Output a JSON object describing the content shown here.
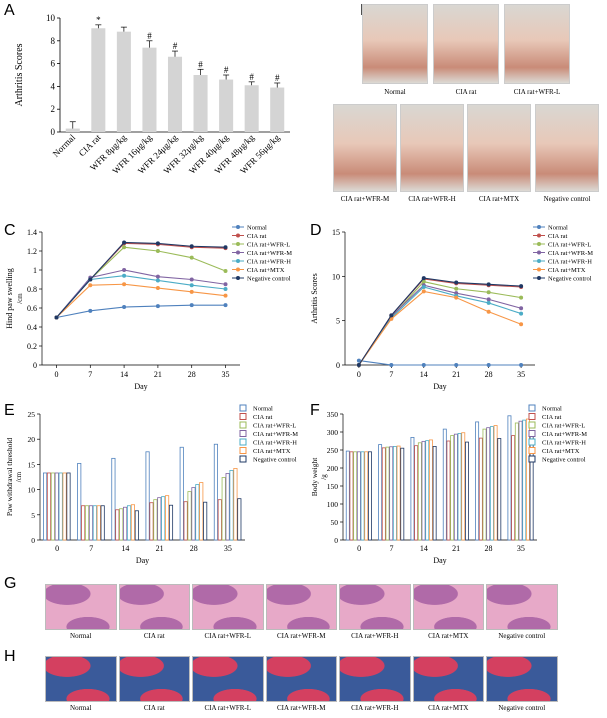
{
  "panels": {
    "A": "A",
    "B": "B",
    "C": "C",
    "D": "D",
    "E": "E",
    "F": "F",
    "G": "G",
    "H": "H"
  },
  "photo_labels": {
    "row1": [
      "Normal",
      "CIA rat",
      "CIA rat+WFR-L"
    ],
    "row2": [
      "CIA rat+WFR-M",
      "CIA rat+WFR-H",
      "CIA rat+MTX",
      "Negative control"
    ]
  },
  "histology_labels": [
    "Normal",
    "CIA rat",
    "CIA rat+WFR-L",
    "CIA rat+WFR-M",
    "CIA rat+WFR-H",
    "CIA rat+MTX",
    "Negative control"
  ],
  "colors": {
    "normal": "#4f81bd",
    "cia": "#c0504d",
    "wfrl": "#9bbb59",
    "wfrm": "#8064a2",
    "wfrh": "#4bacc6",
    "mtx": "#f79646",
    "neg": "#1f3864",
    "bar_gray": "#d4d4d4",
    "he_pink": "#e7a9c8",
    "he_purple": "#b06aa8",
    "stain_blue": "#3a5a9a",
    "stain_red": "#d44060"
  },
  "chart_data": [
    {
      "id": "A",
      "type": "bar",
      "categories": [
        "Normal",
        "CIA rat",
        "WFR 8μg/kg",
        "WFR 16μg/kg",
        "WFR 24μg/kg",
        "WFR 32μg/kg",
        "WFR 40μg/kg",
        "WFR 48μg/kg",
        "WFR 56μg/kg"
      ],
      "values": [
        0.3,
        9.1,
        8.8,
        7.4,
        6.6,
        5.0,
        4.6,
        4.1,
        3.9
      ],
      "errors": [
        0.6,
        0.3,
        0.4,
        0.6,
        0.5,
        0.5,
        0.4,
        0.3,
        0.4
      ],
      "annotations": [
        "",
        "*",
        "",
        "#",
        "#",
        "#",
        "#",
        "#",
        "#"
      ],
      "ylabel": "Arthritis Scores",
      "ylim": [
        0,
        10
      ],
      "yticks": [
        0,
        2,
        4,
        6,
        8,
        10
      ]
    },
    {
      "id": "C",
      "type": "line",
      "x": [
        0,
        7,
        14,
        21,
        28,
        35
      ],
      "xlabel": "Day",
      "ylabel": "Hind paw swelling",
      "yunit": "/cm",
      "ylim": [
        0,
        1.4
      ],
      "yticks": [
        0,
        0.2,
        0.4,
        0.6,
        0.8,
        1.0,
        1.2,
        1.4
      ],
      "legend": "top-right",
      "series": [
        {
          "name": "Normal",
          "color": "#4f81bd",
          "values": [
            0.5,
            0.57,
            0.61,
            0.62,
            0.63,
            0.63
          ]
        },
        {
          "name": "CIA rat",
          "color": "#c0504d",
          "values": [
            0.5,
            0.9,
            1.28,
            1.27,
            1.24,
            1.23
          ]
        },
        {
          "name": "CIA rat+WFR-L",
          "color": "#9bbb59",
          "values": [
            0.5,
            0.9,
            1.24,
            1.2,
            1.13,
            0.99
          ]
        },
        {
          "name": "CIA rat+WFR-M",
          "color": "#8064a2",
          "values": [
            0.5,
            0.92,
            1.0,
            0.93,
            0.9,
            0.85
          ]
        },
        {
          "name": "CIA rat+WFR-H",
          "color": "#4bacc6",
          "values": [
            0.5,
            0.9,
            0.94,
            0.89,
            0.84,
            0.8
          ]
        },
        {
          "name": "CIA rat+MTX",
          "color": "#f79646",
          "values": [
            0.5,
            0.84,
            0.85,
            0.81,
            0.77,
            0.73
          ]
        },
        {
          "name": "Negative control",
          "color": "#1f3864",
          "values": [
            0.5,
            0.9,
            1.29,
            1.28,
            1.25,
            1.24
          ]
        }
      ]
    },
    {
      "id": "D",
      "type": "line",
      "x": [
        0,
        7,
        14,
        21,
        28,
        35
      ],
      "xlabel": "Day",
      "ylabel": "Arthritis Scores",
      "ylim": [
        0,
        15
      ],
      "yticks": [
        0,
        5,
        10,
        15
      ],
      "legend": "top-right",
      "series": [
        {
          "name": "Normal",
          "color": "#4f81bd",
          "values": [
            0.5,
            0,
            0,
            0,
            0,
            0
          ]
        },
        {
          "name": "CIA rat",
          "color": "#c0504d",
          "values": [
            0,
            5.6,
            9.7,
            9.2,
            9.0,
            8.8
          ]
        },
        {
          "name": "CIA rat+WFR-L",
          "color": "#9bbb59",
          "values": [
            0,
            5.4,
            9.4,
            8.6,
            8.2,
            7.6
          ]
        },
        {
          "name": "CIA rat+WFR-M",
          "color": "#8064a2",
          "values": [
            0,
            5.5,
            9.0,
            8.1,
            7.4,
            6.4
          ]
        },
        {
          "name": "CIA rat+WFR-H",
          "color": "#4bacc6",
          "values": [
            0,
            5.3,
            8.8,
            7.8,
            7.0,
            5.8
          ]
        },
        {
          "name": "CIA rat+MTX",
          "color": "#f79646",
          "values": [
            0,
            5.2,
            8.3,
            7.6,
            6.0,
            4.6
          ]
        },
        {
          "name": "Negative control",
          "color": "#1f3864",
          "values": [
            0,
            5.6,
            9.8,
            9.3,
            9.1,
            8.9
          ]
        }
      ]
    },
    {
      "id": "E",
      "type": "bar",
      "categories": [
        "0",
        "7",
        "14",
        "21",
        "28",
        "35"
      ],
      "xlabel": "Day",
      "ylabel": "Paw withdrawal threshold",
      "yunit": "/cm",
      "ylim": [
        0,
        25
      ],
      "yticks": [
        0,
        5,
        10,
        15,
        20,
        25
      ],
      "legend": "top-right",
      "series": [
        {
          "name": "Normal",
          "color": "#4f81bd",
          "values": [
            13.3,
            15.2,
            16.2,
            17.5,
            18.4,
            19.0
          ]
        },
        {
          "name": "CIA rat",
          "color": "#c0504d",
          "values": [
            13.3,
            6.8,
            6.0,
            7.4,
            7.6,
            8.0
          ]
        },
        {
          "name": "CIA rat+WFR-L",
          "color": "#9bbb59",
          "values": [
            13.3,
            6.8,
            6.2,
            8.0,
            9.6,
            12.4
          ]
        },
        {
          "name": "CIA rat+WFR-M",
          "color": "#8064a2",
          "values": [
            13.3,
            6.8,
            6.5,
            8.4,
            10.4,
            13.2
          ]
        },
        {
          "name": "CIA rat+WFR-H",
          "color": "#4bacc6",
          "values": [
            13.3,
            6.8,
            6.8,
            8.6,
            11.0,
            13.8
          ]
        },
        {
          "name": "CIA rat+MTX",
          "color": "#f79646",
          "values": [
            13.3,
            6.8,
            7.0,
            8.8,
            11.4,
            14.2
          ]
        },
        {
          "name": "Negative control",
          "color": "#1f3864",
          "values": [
            13.3,
            6.8,
            5.8,
            6.9,
            7.5,
            8.2
          ]
        }
      ]
    },
    {
      "id": "F",
      "type": "bar",
      "categories": [
        "0",
        "7",
        "14",
        "21",
        "28",
        "35"
      ],
      "xlabel": "Day",
      "ylabel": "Body weight",
      "yunit": "/g",
      "ylim": [
        0,
        350
      ],
      "yticks": [
        0,
        50,
        100,
        150,
        200,
        250,
        300,
        350
      ],
      "legend": "top-right",
      "series": [
        {
          "name": "Normal",
          "color": "#4f81bd",
          "values": [
            247,
            265,
            285,
            308,
            328,
            345
          ]
        },
        {
          "name": "CIA rat",
          "color": "#c0504d",
          "values": [
            245,
            256,
            262,
            275,
            283,
            290
          ]
        },
        {
          "name": "CIA rat+WFR-L",
          "color": "#9bbb59",
          "values": [
            245,
            258,
            270,
            290,
            308,
            325
          ]
        },
        {
          "name": "CIA rat+WFR-M",
          "color": "#8064a2",
          "values": [
            245,
            259,
            274,
            294,
            312,
            330
          ]
        },
        {
          "name": "CIA rat+WFR-H",
          "color": "#4bacc6",
          "values": [
            245,
            260,
            276,
            296,
            315,
            333
          ]
        },
        {
          "name": "CIA rat+MTX",
          "color": "#f79646",
          "values": [
            245,
            261,
            278,
            298,
            318,
            336
          ]
        },
        {
          "name": "Negative control",
          "color": "#1f3864",
          "values": [
            245,
            255,
            260,
            272,
            282,
            288
          ]
        }
      ]
    }
  ]
}
